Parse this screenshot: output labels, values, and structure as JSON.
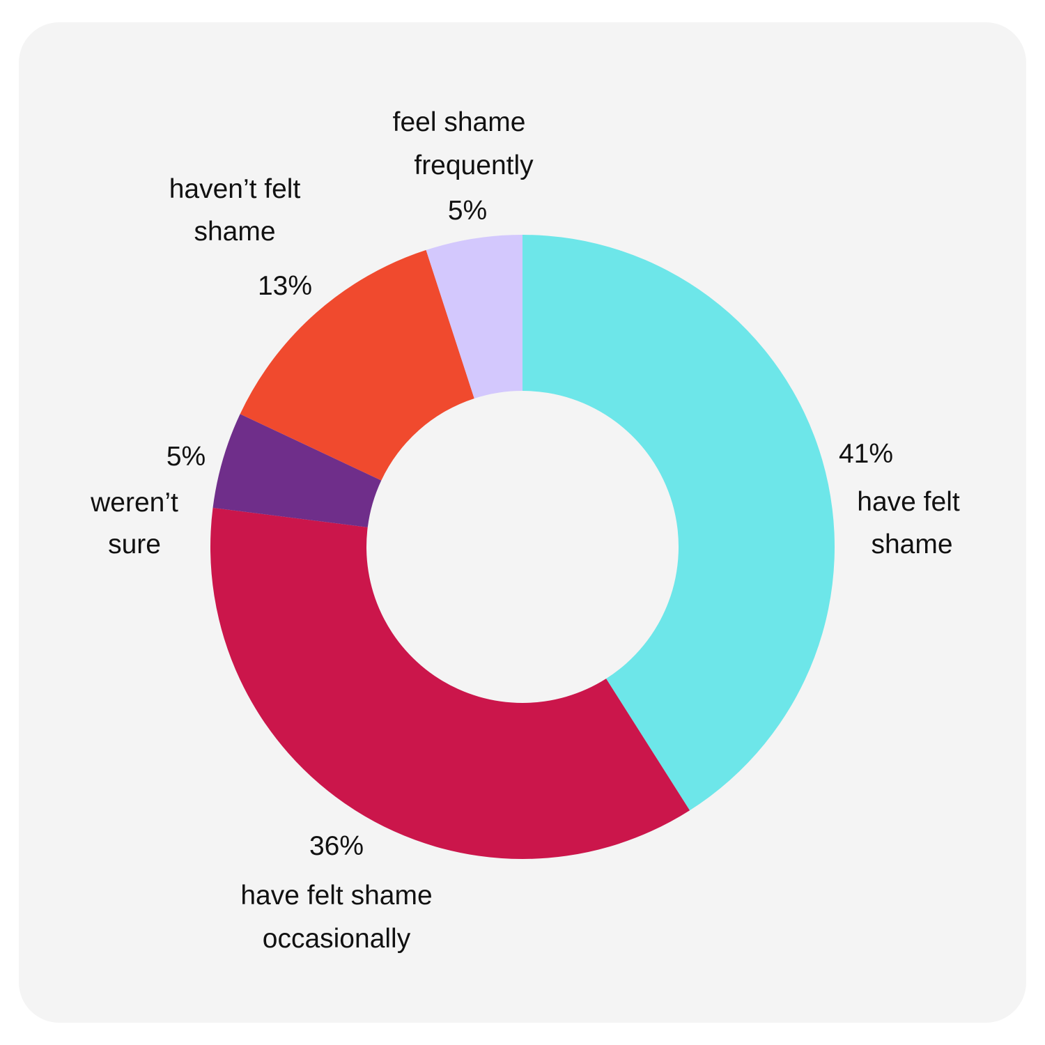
{
  "chart_data": {
    "type": "pie",
    "donut": true,
    "title": "",
    "start_angle_deg": 0,
    "direction": "clockwise",
    "slices": [
      {
        "label_lines": [
          "have felt",
          "shame"
        ],
        "percent_label": "41%",
        "value": 41,
        "color": "#6de6e9"
      },
      {
        "label_lines": [
          "have felt shame",
          "occasionally"
        ],
        "percent_label": "36%",
        "value": 36,
        "color": "#cb164b"
      },
      {
        "label_lines": [
          "weren’t",
          "sure"
        ],
        "percent_label": "5%",
        "value": 5,
        "color": "#6f2e8a"
      },
      {
        "label_lines": [
          "haven’t felt",
          "shame"
        ],
        "percent_label": "13%",
        "value": 13,
        "color": "#f04a2e"
      },
      {
        "label_lines": [
          "feel shame",
          "frequently"
        ],
        "percent_label": "5%",
        "value": 5,
        "color": "#d3c8fd"
      }
    ]
  }
}
